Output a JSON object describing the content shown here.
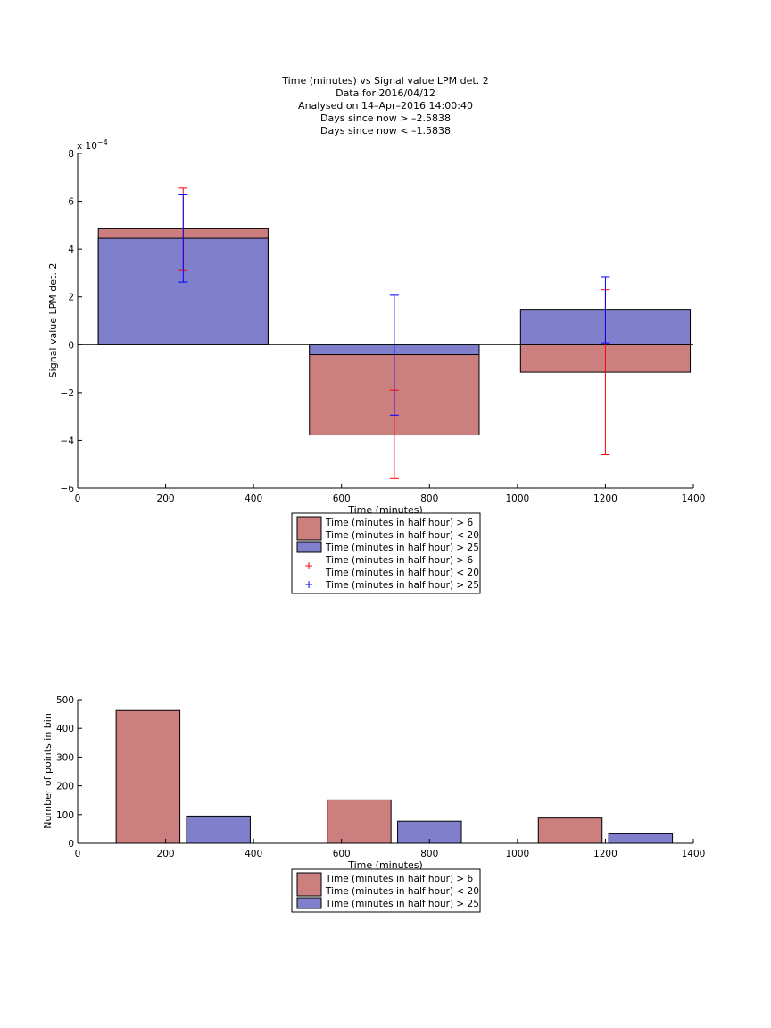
{
  "chart_data": [
    {
      "type": "bar",
      "title_lines": [
        "Time (minutes) vs Signal value LPM det. 2",
        "Data for 2016/04/12",
        "Analysed on 14–Apr–2016 14:00:40",
        "Days since now > –2.5838",
        "Days since now < –1.5838"
      ],
      "xlabel": "Time (minutes)",
      "ylabel": "Signal value LPM det. 2",
      "y_exponent_label": "x 10",
      "y_exponent_power": "−4",
      "xlim": [
        0,
        1400
      ],
      "ylim": [
        -6,
        8
      ],
      "x_ticks": [
        0,
        200,
        400,
        600,
        800,
        1000,
        1200,
        1400
      ],
      "y_ticks": [
        -6,
        -4,
        -2,
        0,
        2,
        4,
        6,
        8
      ],
      "y_tick_labels": [
        "−6",
        "−4",
        "−2",
        "0",
        "2",
        "4",
        "6",
        "8"
      ],
      "grid": false,
      "legend_position": "below",
      "bar_width": 386,
      "series": [
        {
          "name": "Time (minutes in half hour) > 6 Time (minutes in half hour) < 20",
          "color": "#cc7f7f",
          "x": [
            240,
            720,
            1200
          ],
          "values": [
            4.85,
            -3.78,
            -1.15
          ],
          "errors": [
            {
              "x": 240,
              "low": 3.1,
              "high": 6.55
            },
            {
              "x": 720,
              "low": -5.6,
              "high": -1.9
            },
            {
              "x": 1200,
              "low": -4.6,
              "high": 2.3
            }
          ],
          "error_color": "#ff0000"
        },
        {
          "name": "Time (minutes in half hour) > 25",
          "color": "#7f7fcc",
          "x": [
            240,
            720,
            1200
          ],
          "values": [
            4.45,
            -0.42,
            1.48
          ],
          "errors": [
            {
              "x": 240,
              "low": 2.62,
              "high": 6.3
            },
            {
              "x": 720,
              "low": -2.95,
              "high": 2.07
            },
            {
              "x": 1200,
              "low": 0.08,
              "high": 2.85
            }
          ],
          "error_color": "#0000ff"
        }
      ],
      "legend": [
        {
          "kind": "patch",
          "color": "#cc7f7f",
          "lines": [
            "Time (minutes in half hour) > 6",
            "Time (minutes in half hour) < 20"
          ]
        },
        {
          "kind": "patch",
          "color": "#7f7fcc",
          "lines": [
            "Time (minutes in half hour) > 25"
          ]
        },
        {
          "kind": "marker",
          "color": "#ff0000",
          "lines": [
            "Time (minutes in half hour) > 6",
            "Time (minutes in half hour) < 20"
          ]
        },
        {
          "kind": "marker",
          "color": "#0000ff",
          "lines": [
            "Time (minutes in half hour) > 25"
          ]
        }
      ]
    },
    {
      "type": "bar",
      "xlabel": "Time (minutes)",
      "ylabel": "Number of points in bin",
      "xlim": [
        0,
        1400
      ],
      "ylim": [
        0,
        500
      ],
      "x_ticks": [
        0,
        200,
        400,
        600,
        800,
        1000,
        1200,
        1400
      ],
      "y_ticks": [
        0,
        100,
        200,
        300,
        400,
        500
      ],
      "grid": false,
      "legend_position": "below",
      "bar_width": 145,
      "series": [
        {
          "name": "Time (minutes in half hour) > 6 Time (minutes in half hour) < 20",
          "color": "#cc7f7f",
          "x": [
            160,
            640,
            1120
          ],
          "values": [
            462,
            151,
            88
          ]
        },
        {
          "name": "Time (minutes in half hour) > 25",
          "color": "#7f7fcc",
          "x": [
            320,
            800,
            1280
          ],
          "values": [
            95,
            77,
            33
          ]
        }
      ],
      "legend": [
        {
          "kind": "patch",
          "color": "#cc7f7f",
          "lines": [
            "Time (minutes in half hour) > 6",
            "Time (minutes in half hour) < 20"
          ]
        },
        {
          "kind": "patch",
          "color": "#7f7fcc",
          "lines": [
            "Time (minutes in half hour) > 25"
          ]
        }
      ]
    }
  ]
}
